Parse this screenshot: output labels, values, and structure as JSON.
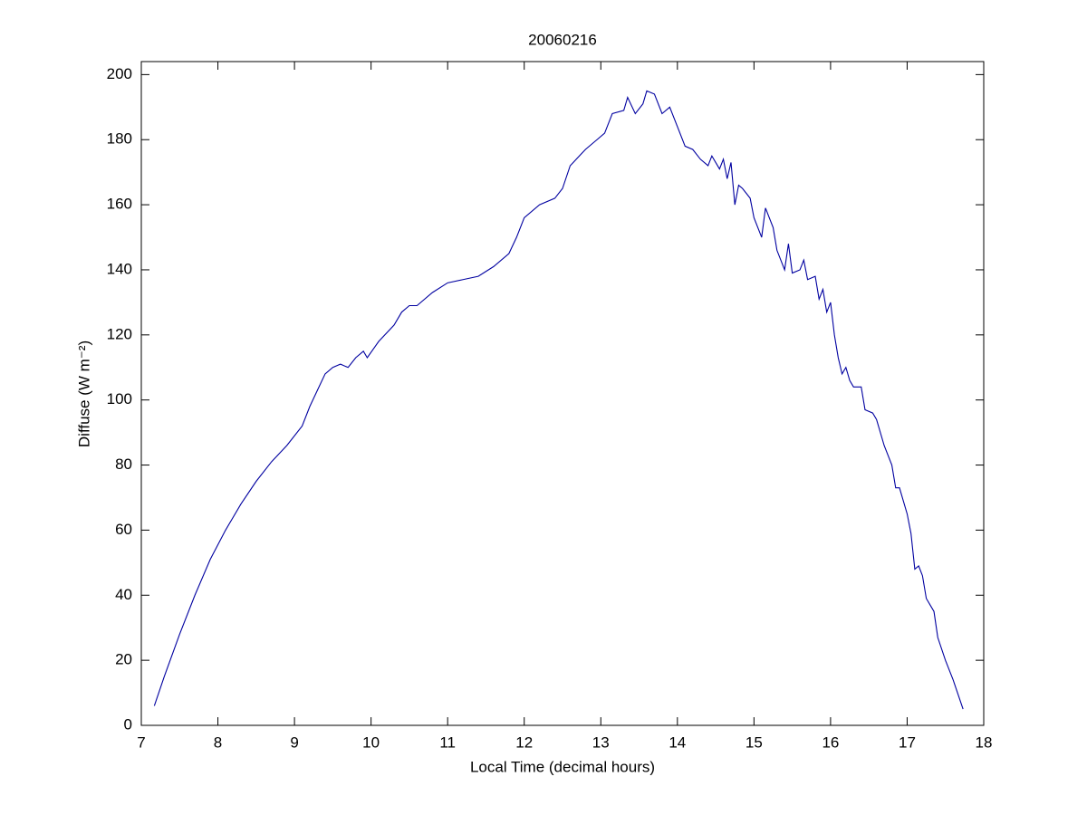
{
  "chart_data": {
    "type": "line",
    "title": "20060216",
    "xlabel": "Local Time (decimal hours)",
    "ylabel": "Diffuse (W m⁻²)",
    "xlim": [
      7,
      18
    ],
    "ylim": [
      0,
      204
    ],
    "xticks": [
      7,
      8,
      9,
      10,
      11,
      12,
      13,
      14,
      15,
      16,
      17,
      18
    ],
    "yticks": [
      0,
      20,
      40,
      60,
      80,
      100,
      120,
      140,
      160,
      180,
      200
    ],
    "grid": false,
    "series": [
      {
        "color": "#0000a0",
        "x": [
          7.17,
          7.3,
          7.5,
          7.7,
          7.9,
          8.1,
          8.3,
          8.5,
          8.7,
          8.9,
          9.1,
          9.2,
          9.3,
          9.4,
          9.5,
          9.6,
          9.7,
          9.8,
          9.9,
          9.95,
          10.1,
          10.3,
          10.4,
          10.5,
          10.6,
          10.8,
          11.0,
          11.2,
          11.4,
          11.6,
          11.8,
          11.9,
          12.0,
          12.2,
          12.4,
          12.5,
          12.6,
          12.8,
          12.95,
          13.05,
          13.15,
          13.3,
          13.35,
          13.45,
          13.55,
          13.6,
          13.7,
          13.8,
          13.9,
          14.0,
          14.1,
          14.2,
          14.3,
          14.4,
          14.45,
          14.55,
          14.6,
          14.65,
          14.7,
          14.75,
          14.8,
          14.85,
          14.95,
          15.0,
          15.1,
          15.15,
          15.25,
          15.3,
          15.4,
          15.45,
          15.5,
          15.6,
          15.65,
          15.7,
          15.8,
          15.85,
          15.9,
          15.95,
          16.0,
          16.05,
          16.1,
          16.15,
          16.2,
          16.25,
          16.3,
          16.4,
          16.45,
          16.55,
          16.6,
          16.7,
          16.8,
          16.85,
          16.9,
          17.0,
          17.05,
          17.1,
          17.15,
          17.2,
          17.25,
          17.3,
          17.35,
          17.4,
          17.5,
          17.6,
          17.73
        ],
        "values": [
          6,
          15,
          28,
          40,
          51,
          60,
          68,
          75,
          81,
          86,
          92,
          98,
          103,
          108,
          110,
          111,
          110,
          113,
          115,
          113,
          118,
          123,
          127,
          129,
          129,
          133,
          136,
          137,
          138,
          141,
          145,
          150,
          156,
          160,
          162,
          165,
          172,
          177,
          180,
          182,
          188,
          189,
          193,
          188,
          191,
          195,
          194,
          188,
          190,
          184,
          178,
          177,
          174,
          172,
          175,
          171,
          174,
          168,
          173,
          160,
          166,
          165,
          162,
          156,
          150,
          159,
          153,
          146,
          140,
          148,
          139,
          140,
          143,
          137,
          138,
          131,
          134,
          127,
          130,
          120,
          113,
          108,
          110,
          106,
          104,
          104,
          97,
          96,
          94,
          86,
          80,
          73,
          73,
          65,
          59,
          48,
          49,
          46,
          39,
          37,
          35,
          27,
          20,
          14,
          5
        ]
      }
    ]
  }
}
